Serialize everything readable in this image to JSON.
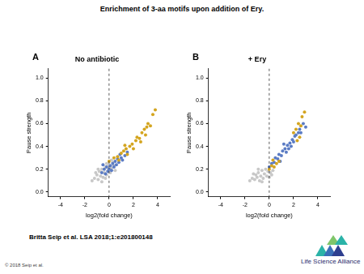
{
  "title": "Enrichment of 3-aa motifs upon addition of Ery.",
  "citation": "Britta Seip et al. LSA 2018;1:e201800148",
  "copyright": "© 2018 Seip et al.",
  "publisher": "Life Science Alliance",
  "chart_data": [
    {
      "type": "scatter",
      "panel_label": "A",
      "title": "No antibiotic",
      "x_label": "log2(fold change)",
      "y_label": "Pause strength",
      "xlim": [
        -5,
        5
      ],
      "xticks": [
        -4,
        -2,
        0,
        2,
        4
      ],
      "ylim": [
        -0.04,
        1.08
      ],
      "yticks": [
        {
          "value": 0,
          "label": "0.0"
        },
        {
          "value": 0.2,
          "label": "0.2"
        },
        {
          "value": 0.4,
          "label": "0.4"
        },
        {
          "value": 0.6,
          "label": "0.6"
        },
        {
          "value": 0.8,
          "label": "0.8"
        },
        {
          "value": 1,
          "label": "1.0"
        }
      ],
      "grid": false,
      "vline": 0,
      "series": [
        {
          "color": "#c8c8c8",
          "marker": "circle",
          "x": [
            -1.2,
            -1.0,
            -0.9,
            -0.8,
            -0.7,
            -0.6,
            -0.5,
            -0.4,
            -0.3,
            -0.2,
            -0.1,
            0,
            0.1,
            0.2,
            0.3,
            -1.4,
            -0.6,
            0.4,
            -0.3,
            -0.9,
            0.5,
            -1.1,
            0.2,
            -0.2
          ],
          "values": [
            0.12,
            0.15,
            0.11,
            0.18,
            0.14,
            0.2,
            0.13,
            0.17,
            0.22,
            0.15,
            0.19,
            0.24,
            0.17,
            0.21,
            0.26,
            0.1,
            0.09,
            0.23,
            0.12,
            0.2,
            0.19,
            0.17,
            0.28,
            0.25
          ]
        },
        {
          "color": "#5b7cc4",
          "marker": "circle",
          "x": [
            -0.6,
            -0.4,
            -0.3,
            -0.2,
            -0.1,
            0,
            0.1,
            0.2,
            0.3,
            0.4,
            0.5,
            0.6,
            0.7,
            0.8,
            1.0,
            1.1,
            1.3,
            0.9,
            -0.5,
            1.5
          ],
          "values": [
            0.17,
            0.2,
            0.16,
            0.22,
            0.18,
            0.2,
            0.23,
            0.19,
            0.25,
            0.22,
            0.27,
            0.24,
            0.29,
            0.26,
            0.3,
            0.28,
            0.32,
            0.33,
            0.24,
            0.35
          ]
        },
        {
          "color": "#d4a520",
          "marker": "circle",
          "x": [
            0,
            0.4,
            0.7,
            1.0,
            1.2,
            1.4,
            1.5,
            1.7,
            1.9,
            2.0,
            2.2,
            2.3,
            2.5,
            2.7,
            2.9,
            3.0,
            3.2,
            3.4,
            3.6,
            3.8,
            3.1,
            2.6,
            1.3,
            0.8
          ],
          "values": [
            0.27,
            0.3,
            0.31,
            0.34,
            0.36,
            0.38,
            0.33,
            0.4,
            0.42,
            0.38,
            0.45,
            0.48,
            0.47,
            0.52,
            0.55,
            0.5,
            0.6,
            0.58,
            0.68,
            0.72,
            0.57,
            0.44,
            0.41,
            0.28
          ]
        }
      ]
    },
    {
      "type": "scatter",
      "panel_label": "B",
      "title": "+ Ery",
      "x_label": "log2(fold change)",
      "y_label": "Pause strength",
      "xlim": [
        -5,
        5
      ],
      "xticks": [
        -4,
        -2,
        0,
        2,
        4
      ],
      "ylim": [
        -0.04,
        1.08
      ],
      "yticks": [
        {
          "value": 0,
          "label": "0.0"
        },
        {
          "value": 0.2,
          "label": "0.2"
        },
        {
          "value": 0.4,
          "label": "0.4"
        },
        {
          "value": 0.6,
          "label": "0.6"
        },
        {
          "value": 0.8,
          "label": "0.8"
        },
        {
          "value": 1,
          "label": "1.0"
        }
      ],
      "grid": false,
      "vline": 0,
      "series": [
        {
          "color": "#c8c8c8",
          "marker": "circle",
          "x": [
            -1.6,
            -1.4,
            -1.2,
            -1.1,
            -1.0,
            -0.9,
            -0.8,
            -0.7,
            -0.6,
            -0.5,
            -0.4,
            -0.3,
            -0.2,
            -0.1,
            0,
            0.1,
            0.2,
            -1.3,
            -0.6,
            0.3,
            -0.9
          ],
          "values": [
            0.1,
            0.12,
            0.11,
            0.15,
            0.13,
            0.17,
            0.1,
            0.14,
            0.19,
            0.12,
            0.16,
            0.2,
            0.14,
            0.18,
            0.13,
            0.17,
            0.15,
            0.16,
            0.09,
            0.19,
            0.2
          ]
        },
        {
          "color": "#5b7cc4",
          "marker": "circle",
          "x": [
            0,
            0.2,
            0.4,
            0.5,
            0.7,
            0.8,
            1.0,
            1.1,
            1.3,
            1.4,
            1.5,
            1.7,
            1.8,
            1.9,
            2.0,
            2.1,
            2.2,
            2.4,
            2.5,
            2.6,
            2.8,
            1.2,
            1.6,
            0.9,
            3.0
          ],
          "values": [
            0.22,
            0.25,
            0.26,
            0.3,
            0.29,
            0.33,
            0.32,
            0.36,
            0.38,
            0.35,
            0.41,
            0.43,
            0.4,
            0.46,
            0.44,
            0.49,
            0.5,
            0.52,
            0.55,
            0.52,
            0.6,
            0.42,
            0.38,
            0.27,
            0.57
          ]
        },
        {
          "color": "#d4a520",
          "marker": "circle",
          "x": [
            0,
            0.2,
            0.4,
            0.6,
            0.3,
            0.8,
            2.0,
            2.2,
            2.4,
            2.6,
            2.7,
            2.9,
            2.5,
            2.3
          ],
          "values": [
            0.2,
            0.23,
            0.22,
            0.25,
            0.28,
            0.27,
            0.52,
            0.55,
            0.6,
            0.58,
            0.66,
            0.7,
            0.48,
            0.45
          ]
        }
      ]
    }
  ]
}
